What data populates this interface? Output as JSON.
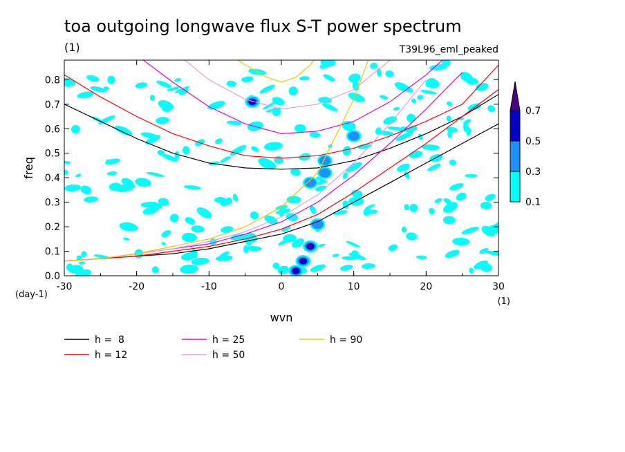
{
  "chart_data": {
    "type": "heatmap",
    "title": "toa outgoing longwave flux S-T power spectrum",
    "units_label": "(1)",
    "run_label": "T39L96_eml_peaked",
    "xlabel": "wvn",
    "ylabel": "freq",
    "y_unit_label": "(day-1)",
    "x_unit_label": "(1)",
    "xlim": [
      -30,
      30
    ],
    "ylim": [
      0,
      0.88
    ],
    "x_ticks": [
      "-30",
      "-20",
      "-10",
      "0",
      "10",
      "20",
      "30"
    ],
    "y_ticks": [
      "0.0",
      "0.1",
      "0.2",
      "0.3",
      "0.4",
      "0.5",
      "0.6",
      "0.7",
      "0.8"
    ],
    "colorbar": {
      "levels": [
        "0.1",
        "0.3",
        "0.5",
        "0.7"
      ],
      "colors": [
        "#00ffff",
        "#1e90ff",
        "#0000c8",
        "#4b0082"
      ],
      "extend": "max"
    },
    "background_noise_color": "#00ffff",
    "peaks": [
      {
        "x": 4,
        "y": 0.12,
        "level": 0.7
      },
      {
        "x": 3,
        "y": 0.06,
        "level": 0.5
      },
      {
        "x": 2,
        "y": 0.02,
        "level": 0.5
      },
      {
        "x": 5,
        "y": 0.21,
        "level": 0.3
      },
      {
        "x": 6,
        "y": 0.47,
        "level": 0.3
      },
      {
        "x": 4,
        "y": 0.38,
        "level": 0.3
      },
      {
        "x": 10,
        "y": 0.57,
        "level": 0.3
      },
      {
        "x": -4,
        "y": 0.71,
        "level": 0.5
      },
      {
        "x": 6,
        "y": 0.42,
        "level": 0.3
      }
    ],
    "series": [
      {
        "name": "h =  8",
        "h": 8,
        "color": "#000000",
        "branches": [
          {
            "x": [
              -30,
              -25,
              -20,
              -15,
              -10,
              -5,
              0,
              5,
              10,
              15,
              20,
              25,
              30
            ],
            "y": [
              0.06,
              0.07,
              0.08,
              0.09,
              0.11,
              0.14,
              0.17,
              0.22,
              0.3,
              0.38,
              0.46,
              0.54,
              0.62
            ]
          },
          {
            "x": [
              -30,
              -25,
              -20,
              -15,
              -10,
              -5,
              0,
              5,
              10,
              15,
              20,
              25,
              30
            ],
            "y": [
              0.7,
              0.63,
              0.56,
              0.5,
              0.46,
              0.44,
              0.435,
              0.44,
              0.47,
              0.52,
              0.58,
              0.65,
              0.74
            ]
          }
        ]
      },
      {
        "name": "h = 12",
        "h": 12,
        "color": "#ff0000",
        "branches": [
          {
            "x": [
              -30,
              -25,
              -20,
              -15,
              -10,
              -5,
              0,
              5,
              10,
              15,
              20,
              25,
              30
            ],
            "y": [
              0.06,
              0.07,
              0.08,
              0.1,
              0.12,
              0.15,
              0.19,
              0.25,
              0.34,
              0.44,
              0.54,
              0.65,
              0.76
            ]
          },
          {
            "x": [
              -30,
              -25,
              -20,
              -15,
              -10,
              -5,
              0,
              5,
              10,
              15,
              20,
              25,
              30
            ],
            "y": [
              0.82,
              0.73,
              0.65,
              0.58,
              0.53,
              0.49,
              0.48,
              0.49,
              0.52,
              0.57,
              0.63,
              0.7,
              0.86
            ]
          }
        ]
      },
      {
        "name": "h = 25",
        "h": 25,
        "color": "#e000e0",
        "branches": [
          {
            "x": [
              -30,
              -25,
              -20,
              -15,
              -10,
              -5,
              0,
              5,
              10,
              15,
              20,
              25
            ],
            "y": [
              0.06,
              0.07,
              0.09,
              0.11,
              0.13,
              0.17,
              0.22,
              0.3,
              0.41,
              0.54,
              0.68,
              0.83
            ]
          },
          {
            "x": [
              -20,
              -15,
              -10,
              -5,
              0,
              5,
              10,
              15,
              20,
              23
            ],
            "y": [
              0.9,
              0.79,
              0.69,
              0.62,
              0.58,
              0.59,
              0.63,
              0.71,
              0.82,
              0.9
            ]
          }
        ]
      },
      {
        "name": "h = 50",
        "h": 50,
        "color": "#dda0dd",
        "branches": [
          {
            "x": [
              -30,
              -25,
              -20,
              -15,
              -10,
              -5,
              0,
              5,
              10,
              15,
              20
            ],
            "y": [
              0.06,
              0.07,
              0.09,
              0.11,
              0.14,
              0.18,
              0.24,
              0.33,
              0.46,
              0.62,
              0.8
            ]
          },
          {
            "x": [
              -15,
              -10,
              -5,
              0,
              5,
              10,
              15
            ],
            "y": [
              0.92,
              0.8,
              0.72,
              0.68,
              0.7,
              0.76,
              0.88
            ]
          }
        ]
      },
      {
        "name": "h = 90",
        "h": 90,
        "color": "#e8c800",
        "branches": [
          {
            "x": [
              -30,
              -25,
              -20,
              -15,
              -10,
              -5,
              0,
              5,
              10,
              12
            ],
            "y": [
              0.06,
              0.07,
              0.09,
              0.12,
              0.15,
              0.2,
              0.28,
              0.42,
              0.72,
              0.88
            ]
          },
          {
            "x": [
              -7,
              -5,
              -2,
              0,
              2,
              4,
              5
            ],
            "y": [
              0.9,
              0.86,
              0.81,
              0.79,
              0.81,
              0.86,
              0.9
            ]
          }
        ]
      }
    ]
  }
}
